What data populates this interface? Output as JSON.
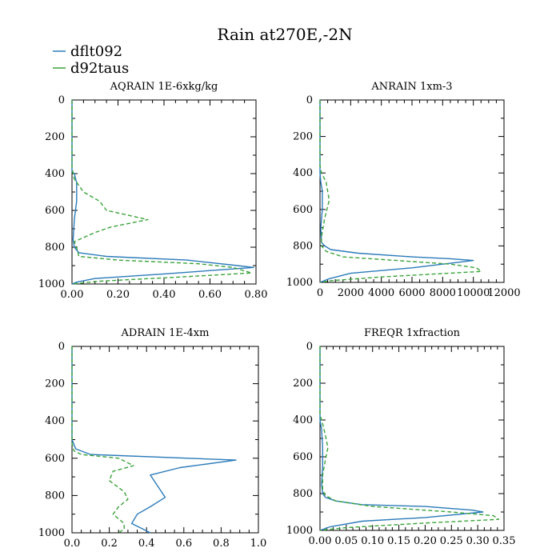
{
  "title": "Rain at270E,-2N",
  "legend": [
    {
      "label": "dflt092",
      "color": "#2b7bba",
      "dash": "solid"
    },
    {
      "label": "d92taus",
      "color": "#3aa33a",
      "dash": "dashed"
    }
  ],
  "chart_data": [
    {
      "type": "line",
      "title": "AQRAIN  1E-6xkg/kg",
      "xlim": [
        0,
        0.8
      ],
      "xticks": [
        "0.00",
        "0.20",
        "0.40",
        "0.60",
        "0.80"
      ],
      "ylim": [
        1000,
        0
      ],
      "yticks": [
        "0",
        "200",
        "400",
        "600",
        "800",
        "1000"
      ],
      "series": [
        {
          "name": "dflt092",
          "points": [
            [
              0,
              0
            ],
            [
              0,
              390
            ],
            [
              0.01,
              400
            ],
            [
              0.02,
              450
            ],
            [
              0.02,
              550
            ],
            [
              0.01,
              650
            ],
            [
              0.005,
              760
            ],
            [
              0.01,
              800
            ],
            [
              0.03,
              830
            ],
            [
              0.15,
              850
            ],
            [
              0.5,
              870
            ],
            [
              0.72,
              900
            ],
            [
              0.79,
              910
            ],
            [
              0.4,
              945
            ],
            [
              0.1,
              970
            ],
            [
              0.02,
              990
            ],
            [
              0,
              1000
            ]
          ]
        },
        {
          "name": "d92taus",
          "points": [
            [
              0,
              0
            ],
            [
              0,
              370
            ],
            [
              0.01,
              430
            ],
            [
              0.05,
              500
            ],
            [
              0.12,
              550
            ],
            [
              0.15,
              600
            ],
            [
              0.33,
              650
            ],
            [
              0.17,
              690
            ],
            [
              0.1,
              720
            ],
            [
              0.01,
              770
            ],
            [
              0.02,
              800
            ],
            [
              0.03,
              850
            ],
            [
              0.2,
              870
            ],
            [
              0.55,
              890
            ],
            [
              0.7,
              910
            ],
            [
              0.78,
              940
            ],
            [
              0.5,
              960
            ],
            [
              0.12,
              985
            ],
            [
              0,
              1000
            ]
          ]
        }
      ]
    },
    {
      "type": "line",
      "title": "ANRAIN  1xm-3",
      "xlim": [
        0,
        12000
      ],
      "xticks": [
        "0",
        "2000",
        "4000",
        "6000",
        "8000",
        "10000",
        "12000"
      ],
      "ylim": [
        1000,
        0
      ],
      "yticks": [
        "0",
        "200",
        "400",
        "600",
        "800",
        "1000"
      ],
      "series": [
        {
          "name": "dflt092",
          "points": [
            [
              0,
              0
            ],
            [
              0,
              400
            ],
            [
              50,
              450
            ],
            [
              150,
              500
            ],
            [
              150,
              600
            ],
            [
              50,
              700
            ],
            [
              100,
              780
            ],
            [
              300,
              800
            ],
            [
              700,
              820
            ],
            [
              2500,
              840
            ],
            [
              6000,
              860
            ],
            [
              8500,
              870
            ],
            [
              10000,
              880
            ],
            [
              6000,
              920
            ],
            [
              2000,
              950
            ],
            [
              600,
              980
            ],
            [
              0,
              1000
            ]
          ]
        },
        {
          "name": "d92taus",
          "points": [
            [
              0,
              0
            ],
            [
              0,
              360
            ],
            [
              100,
              400
            ],
            [
              400,
              450
            ],
            [
              600,
              550
            ],
            [
              300,
              650
            ],
            [
              100,
              750
            ],
            [
              100,
              800
            ],
            [
              400,
              830
            ],
            [
              1500,
              860
            ],
            [
              5000,
              880
            ],
            [
              8500,
              900
            ],
            [
              10200,
              920
            ],
            [
              10500,
              940
            ],
            [
              4000,
              970
            ],
            [
              800,
              990
            ],
            [
              0,
              1000
            ]
          ]
        }
      ]
    },
    {
      "type": "line",
      "title": "ADRAIN  1E-4xm",
      "xlim": [
        0,
        1.0
      ],
      "xticks": [
        "0.0",
        "0.2",
        "0.4",
        "0.6",
        "0.8",
        "1.0"
      ],
      "ylim": [
        1000,
        0
      ],
      "yticks": [
        "0",
        "200",
        "400",
        "600",
        "800",
        "1000"
      ],
      "series": [
        {
          "name": "dflt092",
          "points": [
            [
              0,
              0
            ],
            [
              0,
              500
            ],
            [
              0.02,
              550
            ],
            [
              0.1,
              580
            ],
            [
              0.88,
              610
            ],
            [
              0.58,
              650
            ],
            [
              0.42,
              690
            ],
            [
              0.46,
              750
            ],
            [
              0.5,
              810
            ],
            [
              0.42,
              860
            ],
            [
              0.35,
              900
            ],
            [
              0.32,
              950
            ],
            [
              0.38,
              980
            ],
            [
              0.42,
              1000
            ]
          ]
        },
        {
          "name": "d92taus",
          "points": [
            [
              0,
              0
            ],
            [
              0,
              520
            ],
            [
              0.01,
              560
            ],
            [
              0.05,
              580
            ],
            [
              0.25,
              600
            ],
            [
              0.33,
              640
            ],
            [
              0.22,
              670
            ],
            [
              0.2,
              720
            ],
            [
              0.28,
              780
            ],
            [
              0.3,
              820
            ],
            [
              0.25,
              860
            ],
            [
              0.22,
              900
            ],
            [
              0.28,
              950
            ],
            [
              0.28,
              980
            ],
            [
              0.25,
              1000
            ]
          ]
        }
      ]
    },
    {
      "type": "line",
      "title": "FREQR  1xfraction",
      "xlim": [
        0,
        0.35
      ],
      "xticks": [
        "0.00",
        "0.05",
        "0.10",
        "0.15",
        "0.20",
        "0.25",
        "0.30",
        "0.35"
      ],
      "ylim": [
        1000,
        0
      ],
      "yticks": [
        "0",
        "200",
        "400",
        "600",
        "800",
        "1000"
      ],
      "series": [
        {
          "name": "dflt092",
          "points": [
            [
              0,
              0
            ],
            [
              0,
              400
            ],
            [
              0.003,
              450
            ],
            [
              0.005,
              550
            ],
            [
              0.005,
              650
            ],
            [
              0.003,
              750
            ],
            [
              0.005,
              800
            ],
            [
              0.01,
              820
            ],
            [
              0.03,
              840
            ],
            [
              0.08,
              860
            ],
            [
              0.2,
              870
            ],
            [
              0.29,
              890
            ],
            [
              0.31,
              900
            ],
            [
              0.2,
              930
            ],
            [
              0.08,
              950
            ],
            [
              0.02,
              980
            ],
            [
              0,
              1000
            ]
          ]
        },
        {
          "name": "d92taus",
          "points": [
            [
              0,
              0
            ],
            [
              0,
              370
            ],
            [
              0.005,
              420
            ],
            [
              0.01,
              480
            ],
            [
              0.015,
              550
            ],
            [
              0.01,
              620
            ],
            [
              0.005,
              700
            ],
            [
              0.005,
              780
            ],
            [
              0.01,
              810
            ],
            [
              0.03,
              840
            ],
            [
              0.1,
              870
            ],
            [
              0.25,
              900
            ],
            [
              0.33,
              920
            ],
            [
              0.34,
              940
            ],
            [
              0.2,
              960
            ],
            [
              0.05,
              985
            ],
            [
              0,
              1000
            ]
          ]
        }
      ]
    }
  ]
}
